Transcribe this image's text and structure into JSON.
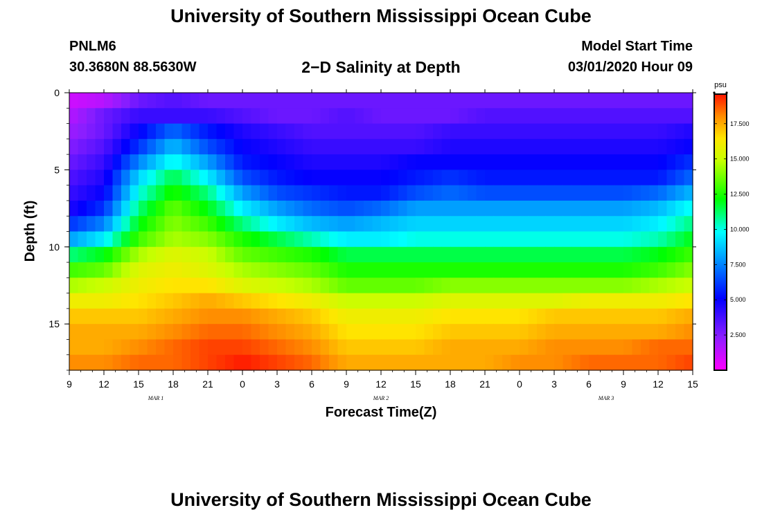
{
  "header": {
    "title": "University of Southern Mississippi Ocean Cube",
    "station": "PNLM6",
    "coords": "30.3680N 88.5630W",
    "subtitle": "2−D Salinity at Depth",
    "model_start_label": "Model Start Time",
    "model_start_value": "03/01/2020 Hour 09"
  },
  "footer": {
    "title": "University of Southern Mississippi Ocean Cube"
  },
  "chart_data": {
    "type": "heatmap",
    "title": "2−D Salinity at Depth",
    "xlabel": "Forecast Time(Z)",
    "ylabel": "Depth (ft)",
    "x_start": "03/01/2020 09Z",
    "x_range_hours": [
      0,
      54
    ],
    "x_ticks": [
      "9",
      "12",
      "15",
      "18",
      "21",
      "0",
      "3",
      "6",
      "9",
      "12",
      "15",
      "18",
      "21",
      "0",
      "3",
      "6",
      "9",
      "12",
      "15"
    ],
    "date_labels": [
      {
        "label": "MAR  1",
        "hour": 7.5
      },
      {
        "label": "MAR  2",
        "hour": 27
      },
      {
        "label": "MAR  3",
        "hour": 46.5
      }
    ],
    "y_ticks": [
      "0",
      "5",
      "10",
      "15"
    ],
    "ylim": [
      0,
      18
    ],
    "y_inverted": true,
    "colorbar": {
      "unit": "psu",
      "range": [
        0,
        19.6
      ],
      "ticks": [
        "2.500",
        "5.000",
        "7.500",
        "10.000",
        "12.500",
        "15.000",
        "17.500"
      ]
    },
    "sample_hours": [
      0,
      3,
      6,
      9,
      12,
      15,
      18,
      21,
      24,
      27,
      30,
      33,
      36,
      39,
      42,
      45,
      48,
      51,
      54
    ],
    "layer_depths_ft": [
      0.5,
      1.5,
      2.5,
      3.5,
      4.5,
      5.5,
      6.5,
      7.5,
      8.5,
      9.5,
      10.5,
      11.5,
      12.5,
      13.5,
      14.5,
      15.5,
      16.5,
      17.5
    ],
    "salinity_psu": [
      [
        1.0,
        1.5,
        3.0,
        3.5,
        3.0,
        3.0,
        3.0,
        3.0,
        3.0,
        3.0,
        3.0,
        3.0,
        3.0,
        3.0,
        3.0,
        3.0,
        3.0,
        3.0,
        3.0
      ],
      [
        1.5,
        3.0,
        4.0,
        4.0,
        4.0,
        3.5,
        3.0,
        3.0,
        3.5,
        3.0,
        3.0,
        3.0,
        3.5,
        3.5,
        3.5,
        3.5,
        3.5,
        3.5,
        3.5
      ],
      [
        2.0,
        3.0,
        5.0,
        7.0,
        5.5,
        4.5,
        4.0,
        3.5,
        3.5,
        3.5,
        3.5,
        4.0,
        4.0,
        4.0,
        4.0,
        4.0,
        4.0,
        4.0,
        4.5
      ],
      [
        2.5,
        3.5,
        6.0,
        8.5,
        6.5,
        5.0,
        4.5,
        4.0,
        4.0,
        4.0,
        4.0,
        4.5,
        4.5,
        4.5,
        4.5,
        4.5,
        4.5,
        4.5,
        5.0
      ],
      [
        3.0,
        4.0,
        7.5,
        10.0,
        8.0,
        5.5,
        5.0,
        4.5,
        4.5,
        4.5,
        5.0,
        5.0,
        5.0,
        5.0,
        5.0,
        5.0,
        5.0,
        5.0,
        6.0
      ],
      [
        3.5,
        4.5,
        9.0,
        11.5,
        9.5,
        6.5,
        5.5,
        5.0,
        5.0,
        5.0,
        5.5,
        6.0,
        5.5,
        5.5,
        5.5,
        5.5,
        5.5,
        5.5,
        7.0
      ],
      [
        4.0,
        5.0,
        10.0,
        12.5,
        11.0,
        8.0,
        6.5,
        6.0,
        5.5,
        5.5,
        6.5,
        7.0,
        6.5,
        6.5,
        6.5,
        6.5,
        6.5,
        7.0,
        8.5
      ],
      [
        4.5,
        6.0,
        11.0,
        13.5,
        12.0,
        9.5,
        8.0,
        7.0,
        6.5,
        7.0,
        8.0,
        8.0,
        8.0,
        8.0,
        8.0,
        8.0,
        8.0,
        8.5,
        10.0
      ],
      [
        6.0,
        7.5,
        12.0,
        14.0,
        13.0,
        11.0,
        9.5,
        8.5,
        8.0,
        8.5,
        9.0,
        9.0,
        9.0,
        9.0,
        9.0,
        9.0,
        9.0,
        9.5,
        11.0
      ],
      [
        8.0,
        9.5,
        13.0,
        14.5,
        14.0,
        12.5,
        11.5,
        10.5,
        9.5,
        9.5,
        10.0,
        10.0,
        10.0,
        10.0,
        10.0,
        10.0,
        10.0,
        10.5,
        12.0
      ],
      [
        11.0,
        12.0,
        14.5,
        15.5,
        15.0,
        13.5,
        13.0,
        12.5,
        11.5,
        11.5,
        11.5,
        11.5,
        11.5,
        11.5,
        11.5,
        11.5,
        11.5,
        12.0,
        13.0
      ],
      [
        13.0,
        13.5,
        15.5,
        16.0,
        15.5,
        14.5,
        14.0,
        13.5,
        12.5,
        12.5,
        12.5,
        12.5,
        12.5,
        12.5,
        12.5,
        12.5,
        12.5,
        13.0,
        14.0
      ],
      [
        14.5,
        15.0,
        16.0,
        16.5,
        16.5,
        15.5,
        15.0,
        14.5,
        13.5,
        13.5,
        13.5,
        14.0,
        14.0,
        14.0,
        14.0,
        14.0,
        14.0,
        14.5,
        15.0
      ],
      [
        16.0,
        16.0,
        16.5,
        17.0,
        17.5,
        17.0,
        16.5,
        16.0,
        15.0,
        15.0,
        15.0,
        15.5,
        15.5,
        15.5,
        15.5,
        16.0,
        16.0,
        16.0,
        16.5
      ],
      [
        17.0,
        17.0,
        17.0,
        17.5,
        18.0,
        18.0,
        17.5,
        17.0,
        16.0,
        16.0,
        16.0,
        16.5,
        16.5,
        16.5,
        17.0,
        17.0,
        17.0,
        17.0,
        17.5
      ],
      [
        17.5,
        17.5,
        17.5,
        18.0,
        18.5,
        18.5,
        18.0,
        17.5,
        16.5,
        16.5,
        16.5,
        17.0,
        17.0,
        17.0,
        17.5,
        17.5,
        17.5,
        17.5,
        18.0
      ],
      [
        17.5,
        17.5,
        18.0,
        18.5,
        19.0,
        19.0,
        18.5,
        18.0,
        17.0,
        17.0,
        17.0,
        17.5,
        17.5,
        17.5,
        18.0,
        18.0,
        18.0,
        18.5,
        18.5
      ],
      [
        18.0,
        18.0,
        18.5,
        18.5,
        19.0,
        19.5,
        19.0,
        18.5,
        17.5,
        17.5,
        17.5,
        17.5,
        17.5,
        18.0,
        18.0,
        18.5,
        18.5,
        18.5,
        19.0
      ]
    ]
  }
}
